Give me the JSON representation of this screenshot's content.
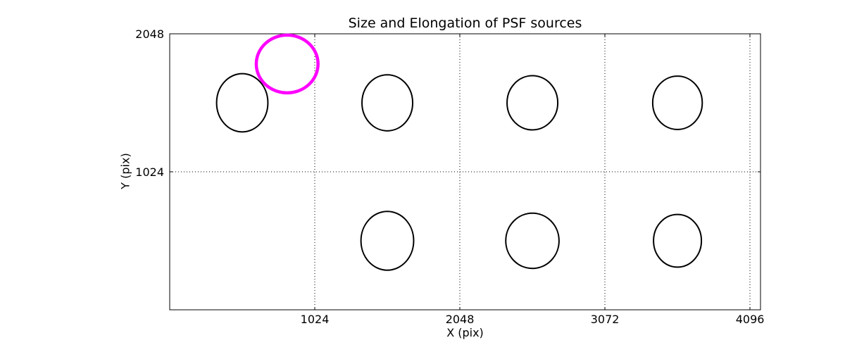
{
  "figure": {
    "background": "#ffffff"
  },
  "chart_data": {
    "type": "scatter",
    "title": "Size and Elongation of PSF sources",
    "xlabel": "X (pix)",
    "ylabel": "Y (pix)",
    "xlim": [
      0,
      4170
    ],
    "ylim": [
      0,
      2048
    ],
    "x_ticks": {
      "values": [
        1024,
        2048,
        3072,
        4096
      ],
      "labels": [
        "1024",
        "2048",
        "3072",
        "4096"
      ]
    },
    "y_ticks": {
      "values": [
        1024,
        2048
      ],
      "labels": [
        "1024",
        "2048"
      ]
    },
    "grid_x": [
      1024,
      2048,
      3072,
      4096
    ],
    "grid_y": [
      1024
    ],
    "grid_style": "dotted",
    "legend": "none",
    "colors": {
      "axis": "#000000",
      "ellipse_normal": "#000000",
      "ellipse_outlier": "#ff00ff",
      "background": "#ffffff"
    },
    "ellipses": [
      {
        "cx": 829,
        "cy": 1824,
        "rx": 218,
        "ry": 214,
        "color": "#ff00ff",
        "lw": 4.5,
        "role": "outlier"
      },
      {
        "cx": 512,
        "cy": 1536,
        "rx": 181,
        "ry": 216,
        "color": "#000000",
        "lw": 2,
        "role": "psf"
      },
      {
        "cx": 1536,
        "cy": 1536,
        "rx": 179,
        "ry": 208,
        "color": "#000000",
        "lw": 2,
        "role": "psf"
      },
      {
        "cx": 2560,
        "cy": 1536,
        "rx": 179,
        "ry": 201,
        "color": "#000000",
        "lw": 2,
        "role": "psf"
      },
      {
        "cx": 3584,
        "cy": 1536,
        "rx": 175,
        "ry": 198,
        "color": "#000000",
        "lw": 2,
        "role": "psf"
      },
      {
        "cx": 1536,
        "cy": 512,
        "rx": 186,
        "ry": 218,
        "color": "#000000",
        "lw": 2,
        "role": "psf"
      },
      {
        "cx": 2560,
        "cy": 512,
        "rx": 188,
        "ry": 205,
        "color": "#000000",
        "lw": 2,
        "role": "psf"
      },
      {
        "cx": 3584,
        "cy": 512,
        "rx": 169,
        "ry": 195,
        "color": "#000000",
        "lw": 2,
        "role": "psf"
      }
    ]
  }
}
